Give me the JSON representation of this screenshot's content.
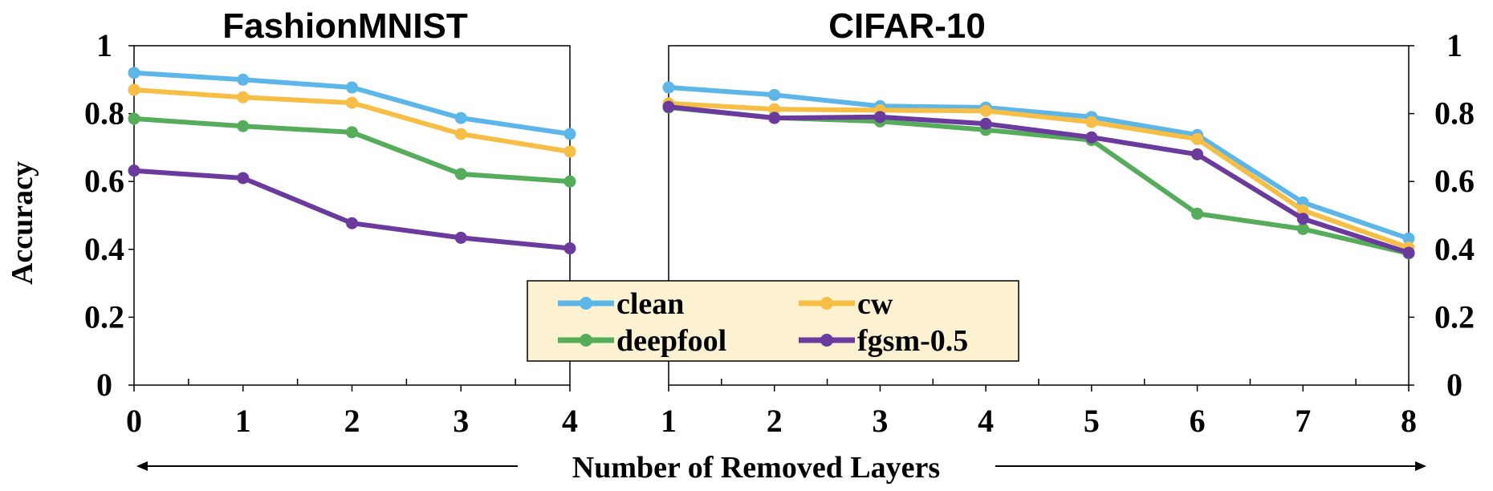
{
  "chart_data": [
    {
      "type": "line",
      "title": "FashionMNIST",
      "ylabel": "Accuracy",
      "ylim": [
        0,
        1
      ],
      "yticks": [
        "0",
        "0.2",
        "0.4",
        "0.6",
        "0.8",
        "1"
      ],
      "x": [
        0,
        1,
        2,
        3,
        4
      ],
      "xticks": [
        "0",
        "1",
        "2",
        "3",
        "4"
      ],
      "grid": false,
      "series": [
        {
          "name": "clean",
          "color": "#5DB6E8",
          "values": [
            0.92,
            0.9,
            0.877,
            0.787,
            0.74
          ]
        },
        {
          "name": "cw",
          "color": "#F7BE45",
          "values": [
            0.87,
            0.848,
            0.832,
            0.74,
            0.688
          ]
        },
        {
          "name": "deepfool",
          "color": "#55AC5A",
          "values": [
            0.785,
            0.763,
            0.745,
            0.622,
            0.6
          ]
        },
        {
          "name": "fgsm-0.5",
          "color": "#6A3A9C",
          "values": [
            0.632,
            0.61,
            0.477,
            0.434,
            0.403
          ]
        }
      ]
    },
    {
      "type": "line",
      "title": "CIFAR-10",
      "ylim": [
        0,
        1
      ],
      "yticks": [
        "0",
        "0.2",
        "0.4",
        "0.6",
        "0.8",
        "1"
      ],
      "x": [
        1,
        2,
        3,
        4,
        5,
        6,
        7,
        8
      ],
      "xticks": [
        "1",
        "2",
        "3",
        "4",
        "5",
        "6",
        "7",
        "8"
      ],
      "grid": false,
      "series": [
        {
          "name": "clean",
          "color": "#5DB6E8",
          "values": [
            0.877,
            0.855,
            0.822,
            0.818,
            0.79,
            0.737,
            0.538,
            0.432
          ]
        },
        {
          "name": "cw",
          "color": "#F7BE45",
          "values": [
            0.83,
            0.813,
            0.81,
            0.808,
            0.775,
            0.725,
            0.515,
            0.405
          ]
        },
        {
          "name": "deepfool",
          "color": "#55AC5A",
          "values": [
            0.818,
            0.788,
            0.777,
            0.752,
            0.722,
            0.505,
            0.46,
            0.388
          ]
        },
        {
          "name": "fgsm-0.5",
          "color": "#6A3A9C",
          "values": [
            0.82,
            0.787,
            0.79,
            0.77,
            0.73,
            0.68,
            0.49,
            0.39
          ]
        }
      ]
    }
  ],
  "legend": {
    "placement": "bottom-center",
    "background": "#FCF2D2",
    "items": [
      "clean",
      "cw",
      "deepfool",
      "fgsm-0.5"
    ]
  },
  "xlabel": "Number of Removed Layers"
}
